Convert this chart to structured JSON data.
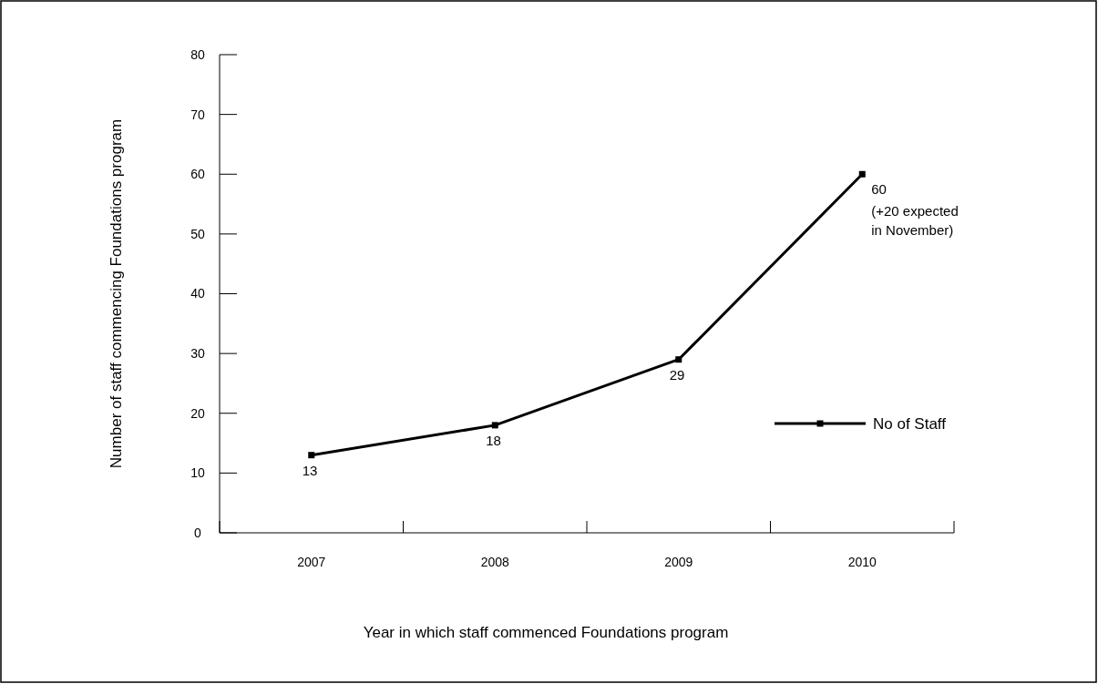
{
  "chart_data": {
    "type": "line",
    "xlabel": "Year in which staff commenced Foundations program",
    "ylabel": "Number of staff commencing Foundations program",
    "categories": [
      "2007",
      "2008",
      "2009",
      "2010"
    ],
    "series": [
      {
        "name": "No of Staff",
        "color": "#000000",
        "values": [
          13,
          18,
          29,
          60
        ]
      }
    ],
    "ylim": [
      0,
      80
    ],
    "yticks": [
      0,
      10,
      20,
      30,
      40,
      50,
      60,
      70,
      80
    ],
    "data_labels": true,
    "marker": "square",
    "line_style": "solid",
    "legend": "right",
    "grid": false,
    "annotations": [
      {
        "text": "(+20 expected in November)",
        "x": "2010",
        "y": 60
      }
    ]
  }
}
